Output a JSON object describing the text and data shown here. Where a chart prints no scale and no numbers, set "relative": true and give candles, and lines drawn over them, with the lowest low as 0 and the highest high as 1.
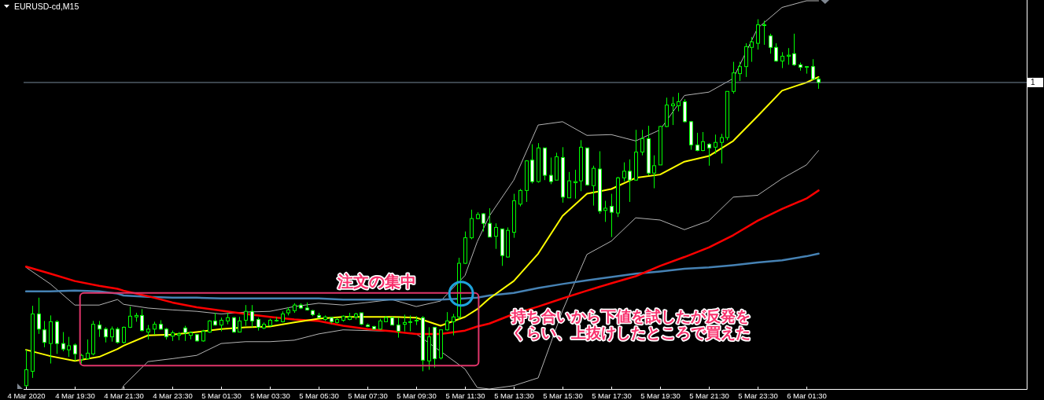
{
  "chart_data": {
    "type": "candlestick",
    "title": "EURUSD-cd,M15",
    "relative": true,
    "color": "#00ff00",
    "x": [
      "2020-03-04T17:30",
      "2020-03-04T17:45",
      "2020-03-04T18:00",
      "2020-03-04T18:15",
      "2020-03-04T18:30",
      "2020-03-04T18:45",
      "2020-03-04T19:00",
      "2020-03-04T19:15",
      "2020-03-04T19:30",
      "2020-03-04T19:45",
      "2020-03-04T20:00",
      "2020-03-04T20:15",
      "2020-03-04T20:30",
      "2020-03-04T20:45",
      "2020-03-04T21:00",
      "2020-03-04T21:15",
      "2020-03-04T21:30",
      "2020-03-04T21:45",
      "2020-03-04T22:00",
      "2020-03-04T22:15",
      "2020-03-04T22:30",
      "2020-03-04T22:45",
      "2020-03-04T23:00",
      "2020-03-04T23:15",
      "2020-03-04T23:30",
      "2020-03-04T23:45",
      "2020-03-05T00:00",
      "2020-03-05T00:15",
      "2020-03-05T00:30",
      "2020-03-05T00:45",
      "2020-03-05T01:00",
      "2020-03-05T01:15",
      "2020-03-05T01:30",
      "2020-03-05T01:45",
      "2020-03-05T02:00",
      "2020-03-05T02:15",
      "2020-03-05T02:30",
      "2020-03-05T02:45",
      "2020-03-05T03:00",
      "2020-03-05T03:15",
      "2020-03-05T03:30",
      "2020-03-05T03:45",
      "2020-03-05T04:00",
      "2020-03-05T04:15",
      "2020-03-05T04:30",
      "2020-03-05T04:45",
      "2020-03-05T05:00",
      "2020-03-05T05:15",
      "2020-03-05T05:30",
      "2020-03-05T05:45",
      "2020-03-05T06:00",
      "2020-03-05T06:15",
      "2020-03-05T06:30",
      "2020-03-05T06:45",
      "2020-03-05T07:00",
      "2020-03-05T07:15",
      "2020-03-05T07:30",
      "2020-03-05T07:45",
      "2020-03-05T08:00",
      "2020-03-05T08:15",
      "2020-03-05T08:30",
      "2020-03-05T08:45",
      "2020-03-05T09:00",
      "2020-03-05T09:15",
      "2020-03-05T09:30",
      "2020-03-05T09:45",
      "2020-03-05T10:00",
      "2020-03-05T10:15",
      "2020-03-05T10:30",
      "2020-03-05T10:45",
      "2020-03-05T11:00",
      "2020-03-05T11:15",
      "2020-03-05T11:30",
      "2020-03-05T11:45",
      "2020-03-05T12:00",
      "2020-03-05T12:15",
      "2020-03-05T12:30",
      "2020-03-05T12:45",
      "2020-03-05T13:00",
      "2020-03-05T13:15",
      "2020-03-05T13:30",
      "2020-03-05T13:45",
      "2020-03-05T14:00",
      "2020-03-05T14:15",
      "2020-03-05T14:30",
      "2020-03-05T14:45",
      "2020-03-05T15:00",
      "2020-03-05T15:15",
      "2020-03-05T15:30",
      "2020-03-05T15:45",
      "2020-03-05T16:00",
      "2020-03-05T16:15",
      "2020-03-05T16:30",
      "2020-03-05T16:45",
      "2020-03-05T17:00",
      "2020-03-05T17:15",
      "2020-03-05T17:30",
      "2020-03-05T17:45",
      "2020-03-05T18:00",
      "2020-03-05T18:15",
      "2020-03-05T18:30",
      "2020-03-05T18:45",
      "2020-03-05T19:00",
      "2020-03-05T19:15",
      "2020-03-05T19:30",
      "2020-03-05T19:45",
      "2020-03-05T20:00",
      "2020-03-05T20:15",
      "2020-03-05T20:30",
      "2020-03-05T20:45",
      "2020-03-05T21:00",
      "2020-03-05T21:15",
      "2020-03-05T21:30",
      "2020-03-05T21:45",
      "2020-03-05T22:00",
      "2020-03-05T22:15",
      "2020-03-05T22:30",
      "2020-03-05T22:45",
      "2020-03-05T23:00",
      "2020-03-05T23:15",
      "2020-03-05T23:30",
      "2020-03-05T23:45",
      "2020-03-06T00:00",
      "2020-03-06T00:15",
      "2020-03-06T00:30",
      "2020-03-06T00:45",
      "2020-03-06T01:00",
      "2020-03-06T01:15",
      "2020-03-06T01:30",
      "2020-03-06T01:45",
      "2020-03-06T02:00"
    ],
    "ohlc": [
      [
        0.009,
        0.106,
        0,
        0.052
      ],
      [
        0.048,
        0.225,
        0.03,
        0.203
      ],
      [
        0.203,
        0.247,
        0.149,
        0.162
      ],
      [
        0.16,
        0.184,
        0.113,
        0.126
      ],
      [
        0.123,
        0.199,
        0.069,
        0.182
      ],
      [
        0.182,
        0.186,
        0.095,
        0.123
      ],
      [
        0.123,
        0.154,
        0.102,
        0.108
      ],
      [
        0.106,
        0.141,
        0.087,
        0.117
      ],
      [
        0.119,
        0.123,
        0.076,
        0.095
      ],
      [
        0.08,
        0.095,
        0.069,
        0.091
      ],
      [
        0.082,
        0.134,
        0.08,
        0.097
      ],
      [
        0.095,
        0.184,
        0.091,
        0.175
      ],
      [
        0.173,
        0.184,
        0.141,
        0.162
      ],
      [
        0.162,
        0.167,
        0.126,
        0.141
      ],
      [
        0.141,
        0.169,
        0.128,
        0.162
      ],
      [
        0.162,
        0.167,
        0.123,
        0.126
      ],
      [
        0.126,
        0.169,
        0.123,
        0.167
      ],
      [
        0.167,
        0.223,
        0.165,
        0.197
      ],
      [
        0.195,
        0.206,
        0.182,
        0.199
      ],
      [
        0.199,
        0.216,
        0.156,
        0.158
      ],
      [
        0.154,
        0.173,
        0.134,
        0.162
      ],
      [
        0.162,
        0.182,
        0.147,
        0.175
      ],
      [
        0.175,
        0.186,
        0.16,
        0.162
      ],
      [
        0.162,
        0.165,
        0.134,
        0.141
      ],
      [
        0.143,
        0.158,
        0.13,
        0.152
      ],
      [
        0.145,
        0.154,
        0.132,
        0.149
      ],
      [
        0.165,
        0.171,
        0.13,
        0.152
      ],
      [
        0.145,
        0.156,
        0.134,
        0.152
      ],
      [
        0.147,
        0.149,
        0.128,
        0.13
      ],
      [
        0.13,
        0.16,
        0.128,
        0.156
      ],
      [
        0.154,
        0.186,
        0.152,
        0.184
      ],
      [
        0.184,
        0.206,
        0.171,
        0.173
      ],
      [
        0.173,
        0.193,
        0.156,
        0.186
      ],
      [
        0.184,
        0.206,
        0.175,
        0.193
      ],
      [
        0.193,
        0.195,
        0.152,
        0.154
      ],
      [
        0.154,
        0.195,
        0.154,
        0.184
      ],
      [
        0.186,
        0.227,
        0.171,
        0.21
      ],
      [
        0.21,
        0.227,
        0.167,
        0.184
      ],
      [
        0.188,
        0.193,
        0.158,
        0.167
      ],
      [
        0.165,
        0.18,
        0.162,
        0.175
      ],
      [
        0.171,
        0.19,
        0.169,
        0.186
      ],
      [
        0.184,
        0.195,
        0.182,
        0.186
      ],
      [
        0.182,
        0.21,
        0.18,
        0.203
      ],
      [
        0.206,
        0.221,
        0.199,
        0.214
      ],
      [
        0.212,
        0.232,
        0.206,
        0.227
      ],
      [
        0.227,
        0.232,
        0.216,
        0.219
      ],
      [
        0.219,
        0.234,
        0.212,
        0.214
      ],
      [
        0.212,
        0.214,
        0.197,
        0.201
      ],
      [
        0.199,
        0.206,
        0.193,
        0.193
      ],
      [
        0.188,
        0.199,
        0.184,
        0.195
      ],
      [
        0.193,
        0.195,
        0.177,
        0.182
      ],
      [
        0.18,
        0.193,
        0.177,
        0.188
      ],
      [
        0.186,
        0.199,
        0.182,
        0.197
      ],
      [
        0.188,
        0.206,
        0.186,
        0.195
      ],
      [
        0.195,
        0.206,
        0.188,
        0.203
      ],
      [
        0.206,
        0.206,
        0.173,
        0.175
      ],
      [
        0.173,
        0.177,
        0.167,
        0.169
      ],
      [
        0.169,
        0.171,
        0.16,
        0.162
      ],
      [
        0.162,
        0.19,
        0.16,
        0.184
      ],
      [
        0.182,
        0.197,
        0.182,
        0.193
      ],
      [
        0.193,
        0.195,
        0.173,
        0.173
      ],
      [
        0.173,
        0.193,
        0.139,
        0.156
      ],
      [
        0.175,
        0.201,
        0.156,
        0.18
      ],
      [
        0.18,
        0.199,
        0.156,
        0.182
      ],
      [
        0.184,
        0.197,
        0.173,
        0.186
      ],
      [
        0.193,
        0.197,
        0.048,
        0.078
      ],
      [
        0.076,
        0.167,
        0.052,
        0.141
      ],
      [
        0.167,
        0.167,
        0.058,
        0.082
      ],
      [
        0.084,
        0.16,
        0.08,
        0.16
      ],
      [
        0.16,
        0.208,
        0.158,
        0.184
      ],
      [
        0.182,
        0.203,
        0.145,
        0.195
      ],
      [
        0.195,
        0.355,
        0.188,
        0.34
      ],
      [
        0.34,
        0.426,
        0.338,
        0.409
      ],
      [
        0.409,
        0.485,
        0.405,
        0.461
      ],
      [
        0.461,
        0.478,
        0.459,
        0.472
      ],
      [
        0.474,
        0.476,
        0.426,
        0.448
      ],
      [
        0.448,
        0.489,
        0.411,
        0.411
      ],
      [
        0.413,
        0.448,
        0.379,
        0.437
      ],
      [
        0.433,
        0.433,
        0.333,
        0.361
      ],
      [
        0.357,
        0.437,
        0.355,
        0.429
      ],
      [
        0.424,
        0.528,
        0.409,
        0.509
      ],
      [
        0.5,
        0.541,
        0.494,
        0.537
      ],
      [
        0.537,
        0.619,
        0.506,
        0.617
      ],
      [
        0.619,
        0.662,
        0.556,
        0.561
      ],
      [
        0.561,
        0.665,
        0.558,
        0.652
      ],
      [
        0.652,
        0.652,
        0.565,
        0.578
      ],
      [
        0.578,
        0.626,
        0.554,
        0.561
      ],
      [
        0.565,
        0.639,
        0.565,
        0.628
      ],
      [
        0.626,
        0.654,
        0.504,
        0.519
      ],
      [
        0.517,
        0.587,
        0.517,
        0.563
      ],
      [
        0.558,
        0.593,
        0.515,
        0.561
      ],
      [
        0.563,
        0.673,
        0.535,
        0.654
      ],
      [
        0.652,
        0.652,
        0.55,
        0.552
      ],
      [
        0.55,
        0.604,
        0.496,
        0.597
      ],
      [
        0.595,
        0.643,
        0.474,
        0.481
      ],
      [
        0.483,
        0.509,
        0.452,
        0.489
      ],
      [
        0.494,
        0.528,
        0.411,
        0.478
      ],
      [
        0.476,
        0.574,
        0.465,
        0.571
      ],
      [
        0.571,
        0.613,
        0.561,
        0.589
      ],
      [
        0.589,
        0.621,
        0.506,
        0.565
      ],
      [
        0.565,
        0.701,
        0.563,
        0.641
      ],
      [
        0.641,
        0.701,
        0.632,
        0.677
      ],
      [
        0.677,
        0.712,
        0.578,
        0.584
      ],
      [
        0.584,
        0.632,
        0.543,
        0.604
      ],
      [
        0.606,
        0.712,
        0.606,
        0.71
      ],
      [
        0.71,
        0.788,
        0.708,
        0.768
      ],
      [
        0.766,
        0.79,
        0.714,
        0.771
      ],
      [
        0.766,
        0.801,
        0.751,
        0.777
      ],
      [
        0.777,
        0.784,
        0.721,
        0.723
      ],
      [
        0.723,
        0.725,
        0.647,
        0.66
      ],
      [
        0.66,
        0.693,
        0.643,
        0.645
      ],
      [
        0.645,
        0.695,
        0.643,
        0.669
      ],
      [
        0.662,
        0.665,
        0.604,
        0.652
      ],
      [
        0.654,
        0.688,
        0.636,
        0.667
      ],
      [
        0.667,
        0.69,
        0.61,
        0.68
      ],
      [
        0.68,
        0.805,
        0.673,
        0.805
      ],
      [
        0.805,
        0.885,
        0.799,
        0.855
      ],
      [
        0.853,
        0.885,
        0.833,
        0.872
      ],
      [
        0.872,
        0.935,
        0.844,
        0.926
      ],
      [
        0.924,
        0.952,
        0.885,
        0.939
      ],
      [
        0.935,
        1,
        0.918,
        0.985
      ],
      [
        0.983,
        0.996,
        0.931,
        0.985
      ],
      [
        0.955,
        0.961,
        0.907,
        0.924
      ],
      [
        0.924,
        0.935,
        0.885,
        0.887
      ],
      [
        0.887,
        0.911,
        0.868,
        0.9
      ],
      [
        0.9,
        0.922,
        0.877,
        0.903
      ],
      [
        0.907,
        0.961,
        0.874,
        0.877
      ],
      [
        0.877,
        0.883,
        0.861,
        0.87
      ],
      [
        0.872,
        0.872,
        0.853,
        0.87
      ],
      [
        0.872,
        0.892,
        0.838,
        0.838
      ],
      [
        0.838,
        0.844,
        0.812,
        0.829
      ]
    ],
    "series": [
      {
        "type": "line",
        "color": "#b4b4b4",
        "x": [
          "2020-03-04T17:30",
          "2020-03-04T18:30",
          "2020-03-04T19:30",
          "2020-03-04T20:30",
          "2020-03-04T21:15",
          "2020-03-04T21:30",
          "2020-03-04T22:30",
          "2020-03-04T23:30",
          "2020-03-05T00:30",
          "2020-03-05T01:30",
          "2020-03-05T02:30",
          "2020-03-05T03:30",
          "2020-03-05T04:30",
          "2020-03-05T05:30",
          "2020-03-05T06:30",
          "2020-03-05T07:30",
          "2020-03-05T08:30",
          "2020-03-05T09:30",
          "2020-03-05T10:30",
          "2020-03-05T11:30",
          "2020-03-05T12:00",
          "2020-03-05T12:30",
          "2020-03-05T13:30",
          "2020-03-05T14:30",
          "2020-03-05T15:30",
          "2020-03-05T16:30",
          "2020-03-05T17:30",
          "2020-03-05T18:30",
          "2020-03-05T19:30",
          "2020-03-05T20:30",
          "2020-03-05T21:30",
          "2020-03-05T22:30",
          "2020-03-05T23:30",
          "2020-03-06T00:30",
          "2020-03-06T01:30",
          "2020-03-06T02:00"
        ],
        "values": [
          0.329,
          0.284,
          0.227,
          0.227,
          0.242,
          0.229,
          0.219,
          0.214,
          0.21,
          0.203,
          0.208,
          0.21,
          0.223,
          0.232,
          0.227,
          0.234,
          0.242,
          0.223,
          0.238,
          0.307,
          0.398,
          0.468,
          0.565,
          0.714,
          0.723,
          0.686,
          0.688,
          0.671,
          0.701,
          0.794,
          0.803,
          0.84,
          0.976,
          1.032,
          1.05,
          1.05
        ]
      },
      {
        "type": "line",
        "color": "#b4b4b4",
        "x": [
          "2020-03-04T21:26",
          "2020-03-04T21:30",
          "2020-03-04T22:30",
          "2020-03-04T23:30",
          "2020-03-05T00:30",
          "2020-03-05T01:30",
          "2020-03-05T02:30",
          "2020-03-05T03:30",
          "2020-03-05T04:30",
          "2020-03-05T05:30",
          "2020-03-05T06:30",
          "2020-03-05T07:30",
          "2020-03-05T08:30",
          "2020-03-05T09:30",
          "2020-03-05T10:30",
          "2020-03-05T11:30",
          "2020-03-05T12:00",
          "2020-03-05T12:30",
          "2020-03-05T13:30",
          "2020-03-05T14:30",
          "2020-03-05T15:30",
          "2020-03-05T16:30",
          "2020-03-05T17:30",
          "2020-03-05T18:30",
          "2020-03-05T19:30",
          "2020-03-05T20:30",
          "2020-03-05T21:30",
          "2020-03-05T22:30",
          "2020-03-05T23:30",
          "2020-03-06T00:30",
          "2020-03-06T01:30",
          "2020-03-06T02:00"
        ],
        "values": [
          0,
          0.009,
          0.074,
          0.082,
          0.091,
          0.123,
          0.128,
          0.128,
          0.132,
          0.149,
          0.16,
          0.158,
          0.156,
          0.149,
          0.102,
          0.054,
          0.004,
          0,
          0.009,
          0.03,
          0.212,
          0.364,
          0.4,
          0.463,
          0.457,
          0.431,
          0.455,
          0.519,
          0.524,
          0.569,
          0.606,
          0.645
        ]
      },
      {
        "type": "line",
        "color": "#4682b4",
        "x": [
          "2020-03-04T17:30",
          "2020-03-04T18:30",
          "2020-03-04T19:30",
          "2020-03-04T20:30",
          "2020-03-04T21:15",
          "2020-03-04T21:30",
          "2020-03-04T22:30",
          "2020-03-04T23:30",
          "2020-03-05T00:30",
          "2020-03-05T01:30",
          "2020-03-05T02:30",
          "2020-03-05T03:30",
          "2020-03-05T04:30",
          "2020-03-05T05:30",
          "2020-03-05T06:30",
          "2020-03-05T07:30",
          "2020-03-05T08:30",
          "2020-03-05T09:30",
          "2020-03-05T10:30",
          "2020-03-05T11:30",
          "2020-03-05T12:00",
          "2020-03-05T12:30",
          "2020-03-05T13:30",
          "2020-03-05T14:30",
          "2020-03-05T15:30",
          "2020-03-05T16:30",
          "2020-03-05T17:30",
          "2020-03-05T18:30",
          "2020-03-05T19:30",
          "2020-03-05T20:30",
          "2020-03-05T21:30",
          "2020-03-05T22:30",
          "2020-03-05T23:30",
          "2020-03-06T00:30",
          "2020-03-06T01:30",
          "2020-03-06T02:00"
        ],
        "values": [
          0.264,
          0.264,
          0.266,
          0.264,
          0.258,
          0.253,
          0.249,
          0.247,
          0.247,
          0.245,
          0.245,
          0.245,
          0.245,
          0.245,
          0.242,
          0.242,
          0.242,
          0.242,
          0.242,
          0.245,
          0.247,
          0.253,
          0.26,
          0.273,
          0.284,
          0.294,
          0.303,
          0.312,
          0.318,
          0.325,
          0.329,
          0.335,
          0.342,
          0.348,
          0.359,
          0.366
        ]
      },
      {
        "type": "line",
        "color": "#ff0000",
        "x": [
          "2020-03-04T17:30",
          "2020-03-04T18:30",
          "2020-03-04T19:30",
          "2020-03-04T20:30",
          "2020-03-04T21:15",
          "2020-03-04T21:30",
          "2020-03-04T22:30",
          "2020-03-04T23:30",
          "2020-03-05T00:30",
          "2020-03-05T01:30",
          "2020-03-05T02:30",
          "2020-03-05T03:30",
          "2020-03-05T04:30",
          "2020-03-05T05:30",
          "2020-03-05T06:30",
          "2020-03-05T07:30",
          "2020-03-05T08:30",
          "2020-03-05T09:30",
          "2020-03-05T10:30",
          "2020-03-05T11:30",
          "2020-03-05T12:00",
          "2020-03-05T12:30",
          "2020-03-05T13:30",
          "2020-03-05T14:30",
          "2020-03-05T15:30",
          "2020-03-05T16:30",
          "2020-03-05T17:30",
          "2020-03-05T18:30",
          "2020-03-05T19:30",
          "2020-03-05T20:30",
          "2020-03-05T21:30",
          "2020-03-05T22:30",
          "2020-03-05T23:30",
          "2020-03-06T00:30",
          "2020-03-06T01:30",
          "2020-03-06T02:00"
        ],
        "values": [
          0.331,
          0.312,
          0.292,
          0.279,
          0.271,
          0.266,
          0.251,
          0.234,
          0.221,
          0.212,
          0.203,
          0.195,
          0.188,
          0.184,
          0.171,
          0.162,
          0.156,
          0.149,
          0.149,
          0.158,
          0.169,
          0.177,
          0.203,
          0.223,
          0.245,
          0.266,
          0.286,
          0.305,
          0.333,
          0.357,
          0.383,
          0.416,
          0.455,
          0.487,
          0.515,
          0.537
        ]
      },
      {
        "type": "line",
        "color": "#ffff00",
        "x": [
          "2020-03-04T17:30",
          "2020-03-04T18:30",
          "2020-03-04T19:30",
          "2020-03-04T20:30",
          "2020-03-04T21:15",
          "2020-03-04T21:30",
          "2020-03-04T22:30",
          "2020-03-04T23:30",
          "2020-03-05T00:30",
          "2020-03-05T01:30",
          "2020-03-05T02:30",
          "2020-03-05T03:30",
          "2020-03-05T04:30",
          "2020-03-05T05:30",
          "2020-03-05T06:30",
          "2020-03-05T07:30",
          "2020-03-05T08:30",
          "2020-03-05T09:30",
          "2020-03-05T10:30",
          "2020-03-05T11:30",
          "2020-03-05T12:00",
          "2020-03-05T12:30",
          "2020-03-05T13:30",
          "2020-03-05T14:30",
          "2020-03-05T15:30",
          "2020-03-05T16:30",
          "2020-03-05T17:30",
          "2020-03-05T18:30",
          "2020-03-05T19:30",
          "2020-03-05T20:30",
          "2020-03-05T21:30",
          "2020-03-05T22:30",
          "2020-03-05T23:30",
          "2020-03-06T00:30",
          "2020-03-06T01:30",
          "2020-03-06T02:00"
        ],
        "values": [
          0.106,
          0.089,
          0.076,
          0.087,
          0.108,
          0.117,
          0.145,
          0.147,
          0.154,
          0.162,
          0.167,
          0.169,
          0.18,
          0.19,
          0.195,
          0.195,
          0.195,
          0.193,
          0.171,
          0.195,
          0.216,
          0.245,
          0.292,
          0.366,
          0.468,
          0.528,
          0.541,
          0.571,
          0.58,
          0.615,
          0.63,
          0.671,
          0.738,
          0.807,
          0.829,
          0.844
        ]
      }
    ],
    "xlim": [
      "2020-03-04T17:24",
      "2020-03-06T10:32"
    ],
    "xticks": [
      {
        "value": "2020-03-04T17:30",
        "label": "4 Mar 2020"
      },
      {
        "value": "2020-03-04T19:30",
        "label": "4 Mar 19:30"
      },
      {
        "value": "2020-03-04T21:30",
        "label": "4 Mar 21:30"
      },
      {
        "value": "2020-03-04T23:30",
        "label": "4 Mar 23:30"
      },
      {
        "value": "2020-03-05T01:30",
        "label": "5 Mar 01:30"
      },
      {
        "value": "2020-03-05T03:30",
        "label": "5 Mar 03:30"
      },
      {
        "value": "2020-03-05T05:30",
        "label": "5 Mar 05:30"
      },
      {
        "value": "2020-03-05T07:30",
        "label": "5 Mar 07:30"
      },
      {
        "value": "2020-03-05T09:30",
        "label": "5 Mar 09:30"
      },
      {
        "value": "2020-03-05T11:30",
        "label": "5 Mar 11:30"
      },
      {
        "value": "2020-03-05T13:30",
        "label": "5 Mar 13:30"
      },
      {
        "value": "2020-03-05T15:30",
        "label": "5 Mar 15:30"
      },
      {
        "value": "2020-03-05T17:30",
        "label": "5 Mar 17:30"
      },
      {
        "value": "2020-03-05T19:30",
        "label": "5 Mar 19:30"
      },
      {
        "value": "2020-03-05T21:30",
        "label": "5 Mar 21:30"
      },
      {
        "value": "2020-03-05T23:30",
        "label": "5 Mar 23:30"
      },
      {
        "value": "2020-03-06T01:30",
        "label": "6 Mar 01:30"
      }
    ],
    "ref_lines": [
      {
        "axis": "y",
        "value": 0.829,
        "label": "1",
        "color": "#778899"
      }
    ],
    "annotations": [
      "注文の集中",
      "持ち合いから下値を試したが反発をくらい、上抜けしたところで買えた"
    ]
  }
}
